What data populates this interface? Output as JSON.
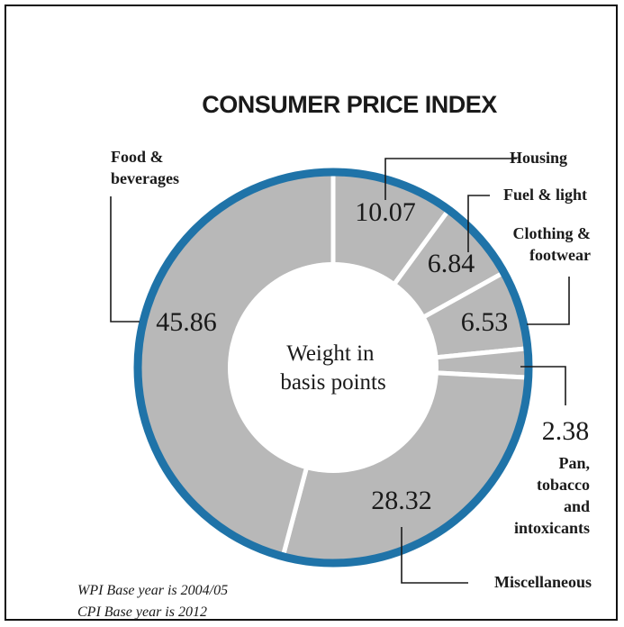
{
  "chart_data": {
    "type": "pie",
    "title": "CONSUMER PRICE INDEX",
    "center_label": [
      "Weight in",
      "basis points"
    ],
    "slices": [
      {
        "name": "Housing",
        "label_lines": [
          "Housing"
        ],
        "value": 10.07
      },
      {
        "name": "Fuel & light",
        "label_lines": [
          "Fuel & light"
        ],
        "value": 6.84
      },
      {
        "name": "Clothing & footwear",
        "label_lines": [
          "Clothing &",
          "footwear"
        ],
        "value": 6.53
      },
      {
        "name": "Pan, tobacco and intoxicants",
        "label_lines": [
          "Pan,",
          "tobacco",
          "and",
          "intoxicants"
        ],
        "value": 2.38
      },
      {
        "name": "Miscellaneous",
        "label_lines": [
          "Miscellaneous"
        ],
        "value": 28.32
      },
      {
        "name": "Food & beverages",
        "label_lines": [
          "Food &",
          "beverages"
        ],
        "value": 45.86
      }
    ],
    "colors": {
      "slice": "#b8b8b8",
      "ring": "#1f73a8",
      "separator": "#ffffff"
    }
  },
  "footnotes": [
    "WPI Base year is 2004/05",
    "CPI Base year is 2012"
  ]
}
